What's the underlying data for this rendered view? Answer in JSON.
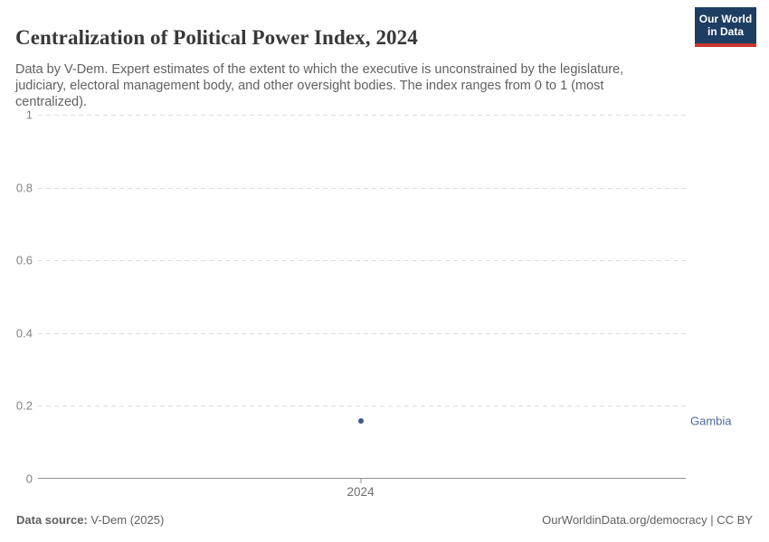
{
  "header": {
    "title": "Centralization of Political Power Index, 2024",
    "subtitle": "Data by V-Dem. Expert estimates of the extent to which the executive is unconstrained by the legislature, judiciary, electoral management body, and other oversight bodies. The index ranges from 0 to 1 (most centralized).",
    "logo": {
      "line1": "Our World",
      "line2": "in Data",
      "bg_color": "#1d3d63",
      "accent_color": "#c6352e"
    }
  },
  "chart_data": {
    "type": "scatter",
    "title": "Centralization of Political Power Index, 2024",
    "x": [
      2024
    ],
    "series": [
      {
        "name": "Gambia",
        "values": [
          0.16
        ],
        "point_color": "#3d5a8a",
        "label_color": "#4c6a9c"
      }
    ],
    "xlabel": "",
    "ylabel": "",
    "ylim": [
      0,
      1
    ],
    "yticks": [
      0,
      0.2,
      0.4,
      0.6,
      0.8,
      1
    ],
    "ytick_labels": [
      "0",
      "0.2",
      "0.4",
      "0.6",
      "0.8",
      "1"
    ],
    "xtick_labels": [
      "2024"
    ],
    "x_position_fraction": 0.498,
    "grid": "horizontal dashed, zero line solid",
    "gridline_color": "#dcdcdc",
    "axis_color": "#8f8f8f",
    "tick_label_color": "#808080",
    "legend_position": "right of plot (entity name label)"
  },
  "footer": {
    "source_label": "Data source:",
    "source_value": "V-Dem (2025)",
    "credit": "OurWorldinData.org/democracy | CC BY"
  }
}
